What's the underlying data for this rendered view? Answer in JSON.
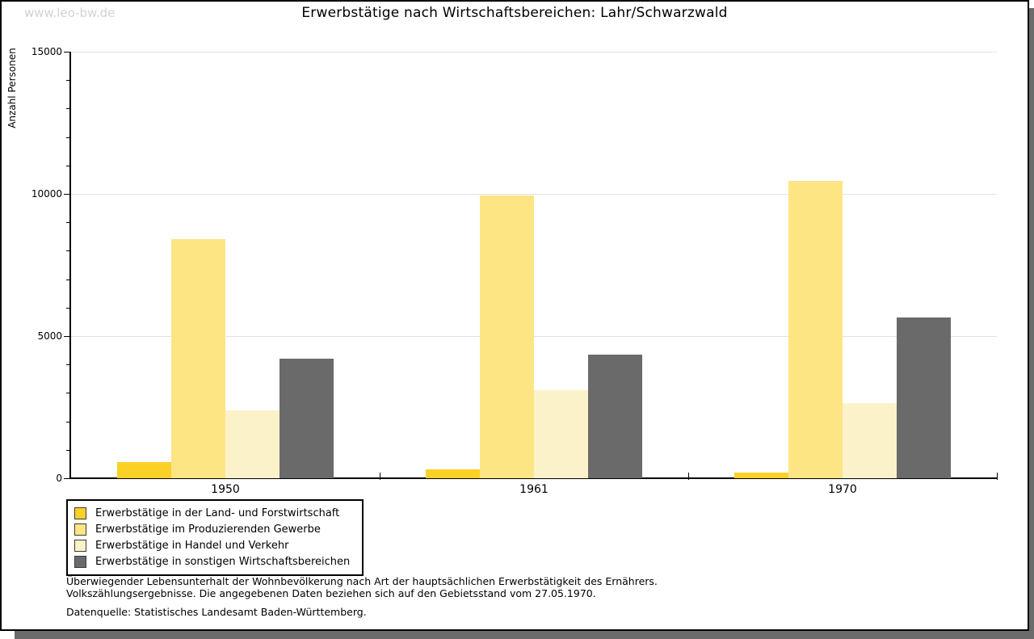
{
  "watermark": "www.leo-bw.de",
  "title": "Erwerbstätige nach Wirtschaftsbereichen: Lahr/Schwarzwald",
  "chart_data": {
    "type": "bar",
    "title": "Erwerbstätige nach Wirtschaftsbereichen: Lahr/Schwarzwald",
    "xlabel": "",
    "ylabel": "Anzahl Personen",
    "categories": [
      "1950",
      "1961",
      "1970"
    ],
    "series": [
      {
        "name": "Erwerbstätige in der Land- und Forstwirtschaft",
        "color": "#FBD128",
        "values": [
          570,
          300,
          210
        ]
      },
      {
        "name": "Erwerbstätige im Produzierenden Gewerbe",
        "color": "#FDE584",
        "values": [
          8400,
          9950,
          10450
        ]
      },
      {
        "name": "Erwerbstätige in Handel und Verkehr",
        "color": "#FCF2C9",
        "values": [
          2400,
          3090,
          2630
        ]
      },
      {
        "name": "Erwerbstätige in sonstigen Wirtschaftsbereichen",
        "color": "#6A6A6A",
        "values": [
          4200,
          4340,
          5640
        ]
      }
    ],
    "ylim": [
      0,
      15000
    ],
    "ytick_major_interval": 5000,
    "ytick_minor_interval": 1000,
    "ytick_labels": [
      "0",
      "5000",
      "10000",
      "15000"
    ],
    "grid": true,
    "legend_position": "bottom-left"
  },
  "footnotes": {
    "line1": "Überwiegender Lebensunterhalt der Wohnbevölkerung nach Art der hauptsächlichen Erwerbstätigkeit des Ernährers.",
    "line2": "Volkszählungsergebnisse. Die angegebenen Daten beziehen sich auf den Gebietsstand vom 27.05.1970.",
    "source": "Datenquelle: Statistisches Landesamt Baden-Württemberg."
  }
}
